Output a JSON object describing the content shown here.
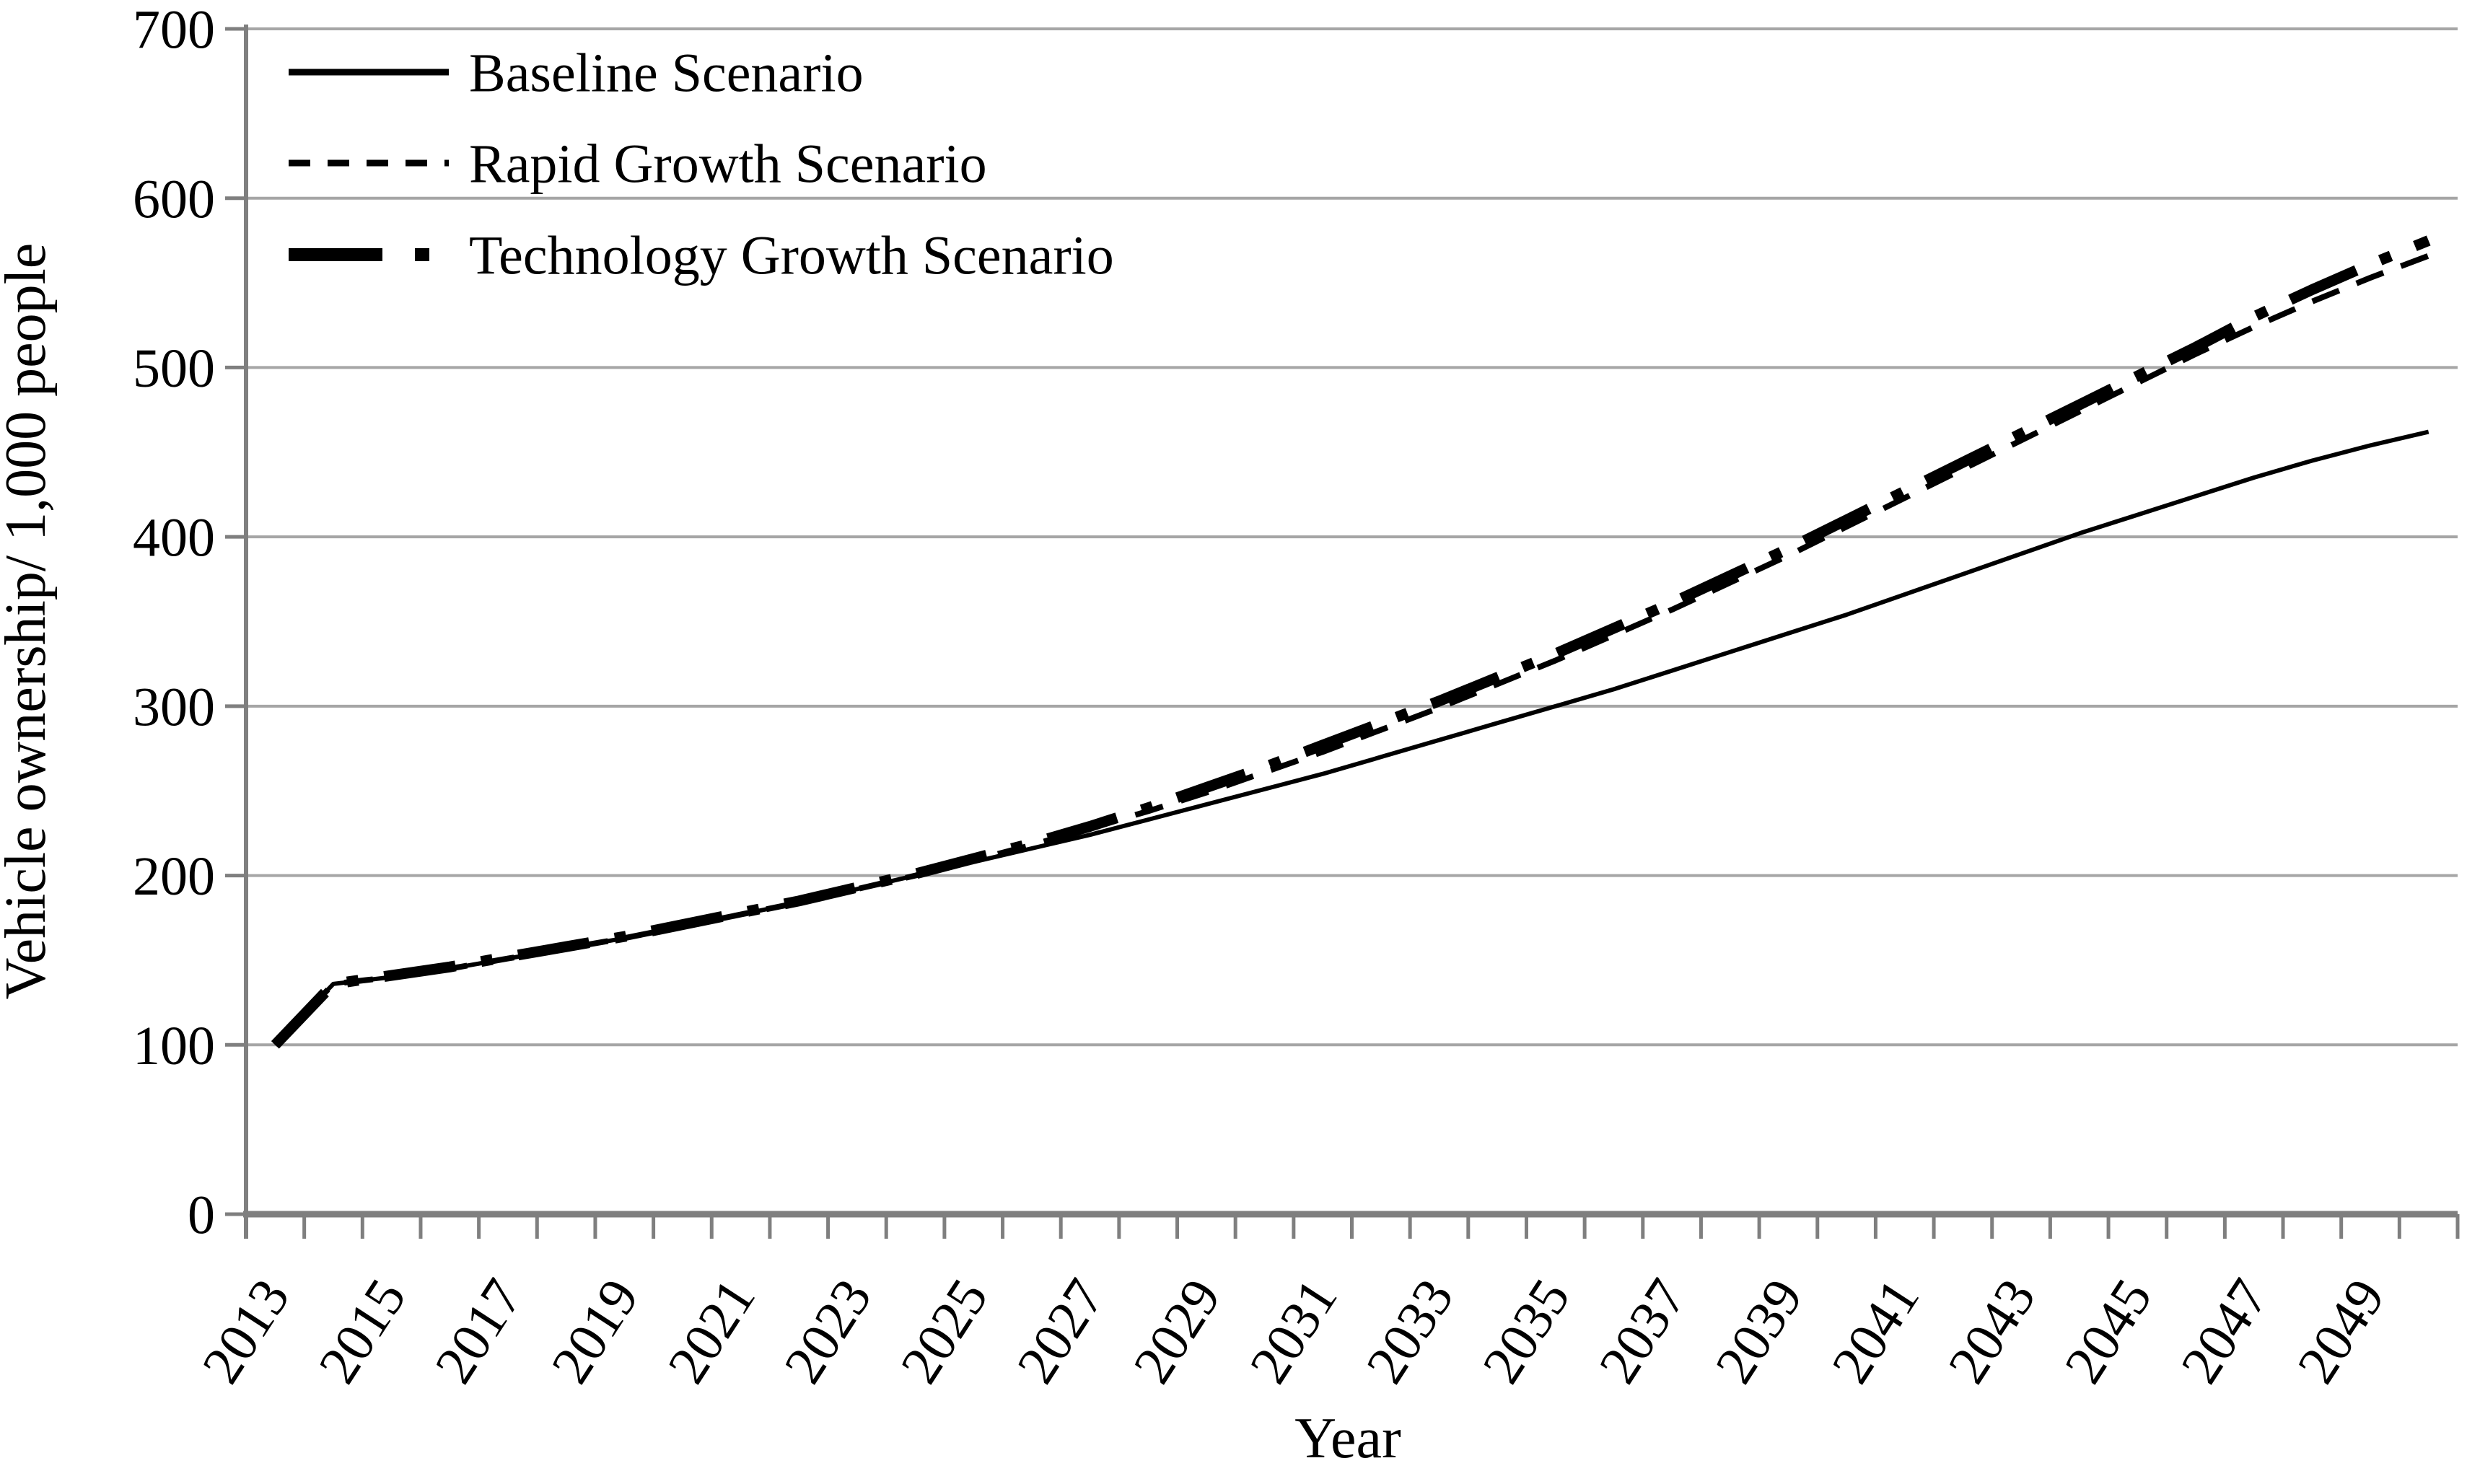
{
  "chart_data": {
    "type": "line",
    "title": "",
    "xlabel": "Year",
    "ylabel": "Vehicle ownership/ 1,000 people",
    "ylim": [
      0,
      700
    ],
    "y_tick_step": 100,
    "x_label_every": 2,
    "grid": "horizontal",
    "legend_position": "top-left-inside",
    "x": [
      2013,
      2014,
      2015,
      2016,
      2017,
      2018,
      2019,
      2020,
      2021,
      2022,
      2023,
      2024,
      2025,
      2026,
      2027,
      2028,
      2029,
      2030,
      2031,
      2032,
      2033,
      2034,
      2035,
      2036,
      2037,
      2038,
      2039,
      2040,
      2041,
      2042,
      2043,
      2044,
      2045,
      2046,
      2047,
      2048,
      2049,
      2050
    ],
    "x_tick_labels": [
      2013,
      2015,
      2017,
      2019,
      2021,
      2023,
      2025,
      2027,
      2029,
      2031,
      2033,
      2035,
      2037,
      2039,
      2041,
      2043,
      2045,
      2047,
      2049
    ],
    "series": [
      {
        "name": "Baseline Scenario",
        "style": "solid",
        "values": [
          100,
          136,
          140,
          145,
          151,
          157,
          163,
          170,
          177,
          184,
          192,
          200,
          208,
          216,
          224,
          233,
          242,
          251,
          260,
          270,
          280,
          290,
          300,
          310,
          321,
          332,
          343,
          354,
          366,
          378,
          390,
          402,
          413,
          424,
          435,
          445,
          454,
          462
        ]
      },
      {
        "name": "Rapid Growth Scenario",
        "style": "dashed",
        "values": [
          100,
          136,
          140,
          145,
          151,
          157,
          163,
          170,
          177,
          184,
          192,
          200,
          209,
          218,
          228,
          238,
          249,
          261,
          273,
          286,
          299,
          313,
          327,
          342,
          357,
          373,
          389,
          406,
          423,
          440,
          457,
          474,
          491,
          508,
          524,
          539,
          553,
          566
        ]
      },
      {
        "name": "Technology Growth Scenario",
        "style": "thick-dash-dot",
        "values": [
          100,
          136,
          141,
          146,
          152,
          158,
          164,
          171,
          178,
          185,
          193,
          201,
          210,
          219,
          229,
          240,
          252,
          264,
          277,
          290,
          303,
          317,
          331,
          346,
          361,
          377,
          393,
          410,
          427,
          444,
          461,
          478,
          495,
          512,
          530,
          546,
          561,
          575
        ]
      }
    ],
    "colors": {
      "series": "#000000",
      "gridline": "#a6a6a6",
      "axis": "#7f7f7f",
      "text": "#000000",
      "background": "#ffffff"
    }
  }
}
